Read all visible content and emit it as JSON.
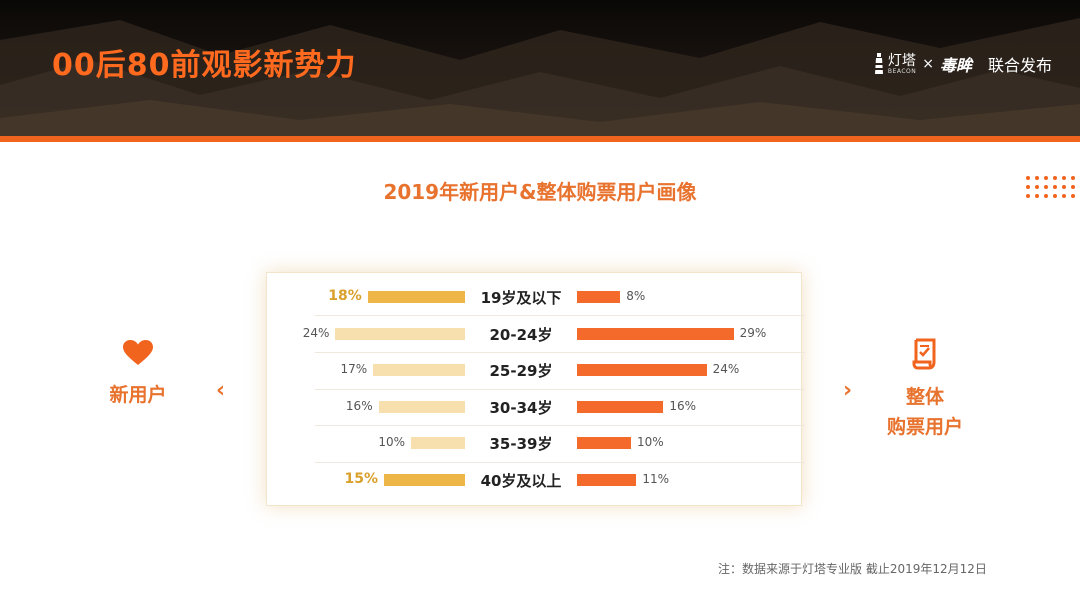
{
  "header": {
    "title": "00后80前观影新势力",
    "partner_logo_1": "灯塔",
    "partner_logo_1_sub": "BEACON",
    "times": "×",
    "partner_logo_2": "毒眸",
    "joint_label": "联合发布"
  },
  "colors": {
    "accent": "#f0641e",
    "new_user_bar": "#f7dfae",
    "new_user_highlight": "#edb646",
    "overall_bar": "#f36a2a"
  },
  "left_group": {
    "label": "新用户",
    "icon": "heart-icon"
  },
  "right_group": {
    "label_line1": "整体",
    "label_line2": "购票用户",
    "icon": "document-icon"
  },
  "nav": {
    "prev": "‹",
    "next": "›"
  },
  "chart_data": {
    "type": "bar",
    "title": "2019年新用户&整体购票用户画像",
    "categories": [
      "19岁及以下",
      "20-24岁",
      "25-29岁",
      "30-34岁",
      "35-39岁",
      "40岁及以上"
    ],
    "series": [
      {
        "name": "新用户",
        "values": [
          18,
          24,
          17,
          16,
          10,
          15
        ],
        "labels": [
          "18%",
          "24%",
          "17%",
          "16%",
          "10%",
          "15%"
        ],
        "highlight": [
          true,
          false,
          false,
          false,
          false,
          true
        ]
      },
      {
        "name": "整体购票用户",
        "values": [
          8,
          29,
          24,
          16,
          10,
          11
        ],
        "labels": [
          "8%",
          "29%",
          "24%",
          "16%",
          "10%",
          "11%"
        ]
      }
    ]
  },
  "source_note": "注：数据来源于灯塔专业版 截止2019年12月12日"
}
